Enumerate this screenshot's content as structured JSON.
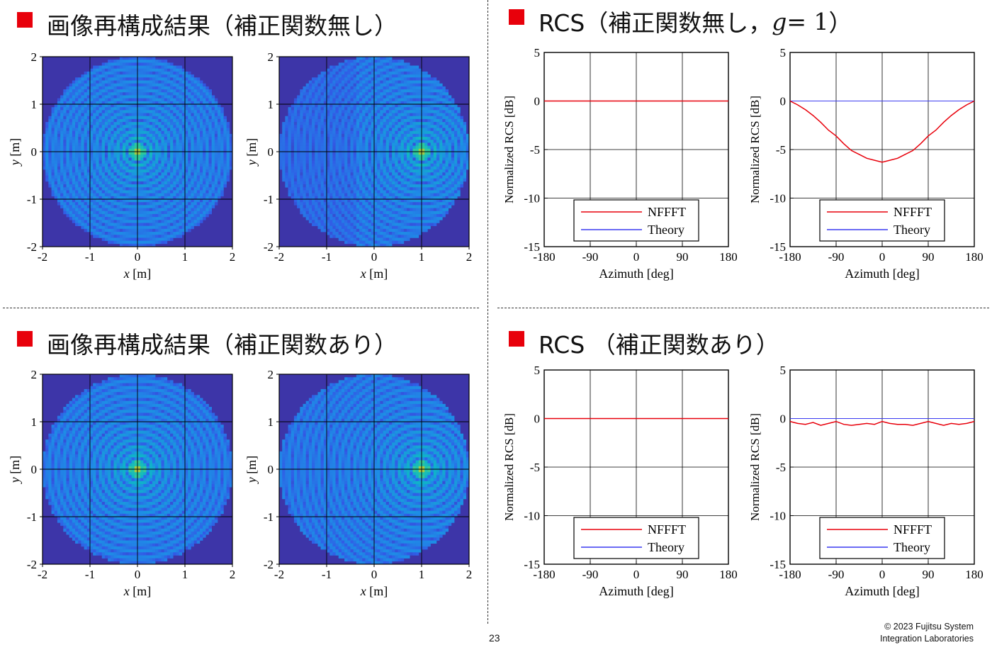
{
  "sections": {
    "image_no_corr": {
      "title": "画像再構成結果（補正関数無し）"
    },
    "rcs_no_corr": {
      "title_pre": "RCS（補正関数無し，",
      "title_var": "g",
      "title_eq": " = 1",
      "title_post": "）"
    },
    "image_corr": {
      "title": "画像再構成結果（補正関数あり）"
    },
    "rcs_corr": {
      "title": "RCS （補正関数あり）"
    }
  },
  "footer": {
    "page_number": "23",
    "copyright_line1": "© 2023 Fujitsu System",
    "copyright_line2": "Integration Laboratories"
  },
  "chart_data": [
    {
      "id": "img-no-corr-center",
      "type": "heatmap",
      "xlabel_var": "x",
      "xlabel_unit": " [m]",
      "ylabel_var": "y",
      "ylabel_unit": " [m]",
      "xlim": [
        -2,
        2
      ],
      "ylim": [
        -2,
        2
      ],
      "xticks": [
        "-2",
        "-1",
        "0",
        "1",
        "2"
      ],
      "yticks": [
        "-2",
        "-1",
        "0",
        "1",
        "2"
      ],
      "grid": true,
      "source_center": [
        0,
        0
      ],
      "support": "full-disc",
      "corrected": false
    },
    {
      "id": "img-no-corr-offset",
      "type": "heatmap",
      "xlabel_var": "x",
      "xlabel_unit": " [m]",
      "ylabel_var": "y",
      "ylabel_unit": " [m]",
      "xlim": [
        -2,
        2
      ],
      "ylim": [
        -2,
        2
      ],
      "xticks": [
        "-2",
        "-1",
        "0",
        "1",
        "2"
      ],
      "yticks": [
        "-2",
        "-1",
        "0",
        "1",
        "2"
      ],
      "grid": true,
      "source_center": [
        1,
        0
      ],
      "support": "full-disc",
      "corrected": false
    },
    {
      "id": "rcs-no-corr-center",
      "type": "line",
      "xlabel": "Azimuth [deg]",
      "ylabel": "Normalized RCS [dB]",
      "xlim": [
        -180,
        180
      ],
      "ylim": [
        -15,
        5
      ],
      "xticks": [
        "-180",
        "-90",
        "0",
        "90",
        "180"
      ],
      "yticks": [
        "5",
        "0",
        "-5",
        "-10",
        "-15"
      ],
      "grid": true,
      "legend_position": "bottom-center",
      "x": [
        -180,
        -150,
        -120,
        -90,
        -60,
        -30,
        0,
        30,
        60,
        90,
        120,
        150,
        180
      ],
      "series": [
        {
          "name": "NFFFT",
          "color": "#e8000b",
          "values": [
            0,
            0,
            0,
            0,
            0,
            0,
            0,
            0,
            0,
            0,
            0,
            0,
            0
          ]
        },
        {
          "name": "Theory",
          "color": "#3a3af0",
          "values": [
            0,
            0,
            0,
            0,
            0,
            0,
            0,
            0,
            0,
            0,
            0,
            0,
            0
          ]
        }
      ]
    },
    {
      "id": "rcs-no-corr-offset",
      "type": "line",
      "xlabel": "Azimuth [deg]",
      "ylabel": "Normalized RCS [dB]",
      "xlim": [
        -180,
        180
      ],
      "ylim": [
        -15,
        5
      ],
      "xticks": [
        "-180",
        "-90",
        "0",
        "90",
        "180"
      ],
      "yticks": [
        "5",
        "0",
        "-5",
        "-10",
        "-15"
      ],
      "grid": true,
      "legend_position": "bottom-center",
      "x": [
        -180,
        -165,
        -150,
        -135,
        -120,
        -105,
        -90,
        -75,
        -60,
        -45,
        -30,
        -15,
        0,
        15,
        30,
        45,
        60,
        75,
        90,
        105,
        120,
        135,
        150,
        165,
        180
      ],
      "series": [
        {
          "name": "NFFFT",
          "color": "#e8000b",
          "values": [
            0,
            -0.4,
            -0.9,
            -1.5,
            -2.2,
            -3.0,
            -3.6,
            -4.4,
            -5.1,
            -5.5,
            -5.9,
            -6.1,
            -6.3,
            -6.1,
            -5.9,
            -5.5,
            -5.1,
            -4.4,
            -3.6,
            -3.0,
            -2.2,
            -1.5,
            -0.9,
            -0.4,
            0
          ]
        },
        {
          "name": "Theory",
          "color": "#3a3af0",
          "values": [
            0,
            0,
            0,
            0,
            0,
            0,
            0,
            0,
            0,
            0,
            0,
            0,
            0,
            0,
            0,
            0,
            0,
            0,
            0,
            0,
            0,
            0,
            0,
            0,
            0
          ]
        }
      ]
    },
    {
      "id": "img-corr-center",
      "type": "heatmap",
      "xlabel_var": "x",
      "xlabel_unit": " [m]",
      "ylabel_var": "y",
      "ylabel_unit": " [m]",
      "xlim": [
        -2,
        2
      ],
      "ylim": [
        -2,
        2
      ],
      "xticks": [
        "-2",
        "-1",
        "0",
        "1",
        "2"
      ],
      "yticks": [
        "-2",
        "-1",
        "0",
        "1",
        "2"
      ],
      "grid": true,
      "source_center": [
        0,
        0
      ],
      "support": "full-disc",
      "corrected": true
    },
    {
      "id": "img-corr-offset",
      "type": "heatmap",
      "xlabel_var": "x",
      "xlabel_unit": " [m]",
      "ylabel_var": "y",
      "ylabel_unit": " [m]",
      "xlim": [
        -2,
        2
      ],
      "ylim": [
        -2,
        2
      ],
      "xticks": [
        "-2",
        "-1",
        "0",
        "1",
        "2"
      ],
      "yticks": [
        "-2",
        "-1",
        "0",
        "1",
        "2"
      ],
      "grid": true,
      "source_center": [
        1,
        0
      ],
      "support": "full-disc",
      "corrected": true
    },
    {
      "id": "rcs-corr-center",
      "type": "line",
      "xlabel": "Azimuth [deg]",
      "ylabel": "Normalized RCS [dB]",
      "xlim": [
        -180,
        180
      ],
      "ylim": [
        -15,
        5
      ],
      "xticks": [
        "-180",
        "-90",
        "0",
        "90",
        "180"
      ],
      "yticks": [
        "5",
        "0",
        "-5",
        "-10",
        "-15"
      ],
      "grid": true,
      "legend_position": "bottom-center",
      "x": [
        -180,
        -150,
        -120,
        -90,
        -60,
        -30,
        0,
        30,
        60,
        90,
        120,
        150,
        180
      ],
      "series": [
        {
          "name": "NFFFT",
          "color": "#e8000b",
          "values": [
            0,
            0,
            0,
            0,
            0,
            0,
            0,
            0,
            0,
            0,
            0,
            0,
            0
          ]
        },
        {
          "name": "Theory",
          "color": "#3a3af0",
          "values": [
            0,
            0,
            0,
            0,
            0,
            0,
            0,
            0,
            0,
            0,
            0,
            0,
            0
          ]
        }
      ]
    },
    {
      "id": "rcs-corr-offset",
      "type": "line",
      "xlabel": "Azimuth [deg]",
      "ylabel": "Normalized RCS [dB]",
      "xlim": [
        -180,
        180
      ],
      "ylim": [
        -15,
        5
      ],
      "xticks": [
        "-180",
        "-90",
        "0",
        "90",
        "180"
      ],
      "yticks": [
        "5",
        "0",
        "-5",
        "-10",
        "-15"
      ],
      "grid": true,
      "legend_position": "bottom-center",
      "x": [
        -180,
        -165,
        -150,
        -135,
        -120,
        -105,
        -90,
        -75,
        -60,
        -45,
        -30,
        -15,
        0,
        15,
        30,
        45,
        60,
        75,
        90,
        105,
        120,
        135,
        150,
        165,
        180
      ],
      "series": [
        {
          "name": "NFFFT",
          "color": "#e8000b",
          "values": [
            -0.3,
            -0.5,
            -0.6,
            -0.4,
            -0.7,
            -0.5,
            -0.3,
            -0.6,
            -0.7,
            -0.6,
            -0.5,
            -0.6,
            -0.3,
            -0.5,
            -0.6,
            -0.6,
            -0.7,
            -0.5,
            -0.3,
            -0.5,
            -0.7,
            -0.5,
            -0.6,
            -0.5,
            -0.3
          ]
        },
        {
          "name": "Theory",
          "color": "#3a3af0",
          "values": [
            0,
            0,
            0,
            0,
            0,
            0,
            0,
            0,
            0,
            0,
            0,
            0,
            0,
            0,
            0,
            0,
            0,
            0,
            0,
            0,
            0,
            0,
            0,
            0,
            0
          ]
        }
      ]
    }
  ]
}
